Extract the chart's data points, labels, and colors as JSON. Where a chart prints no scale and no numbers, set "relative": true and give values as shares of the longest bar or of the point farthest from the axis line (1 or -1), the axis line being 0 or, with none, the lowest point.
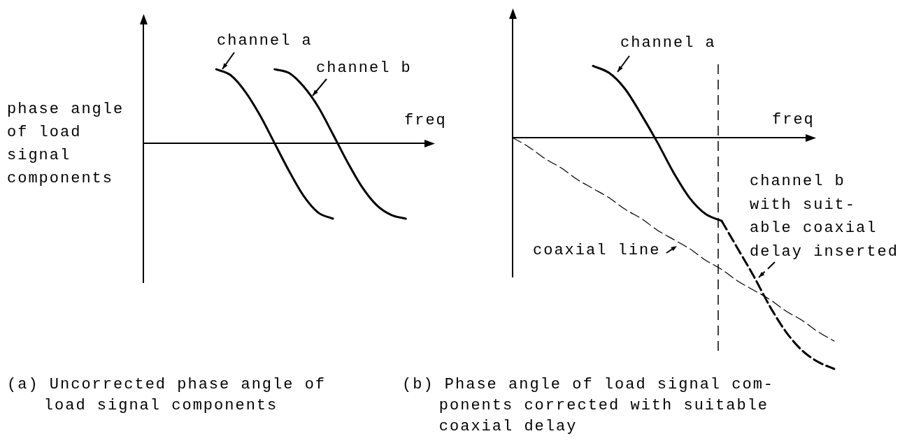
{
  "chart_data": [
    {
      "type": "line",
      "title": "(a) Uncorrected phase angle of\nload signal components",
      "xlabel": "freq",
      "ylabel": "phase angle\nof load\nsignal\ncomponents",
      "relative": true,
      "tick_labels": false,
      "marker": "none",
      "categories": [
        null,
        null,
        null,
        null,
        null,
        null,
        null,
        null,
        null,
        null,
        null,
        null,
        null,
        null,
        null,
        null,
        null,
        null,
        null,
        null,
        null
      ],
      "series": [
        {
          "name": "channel a",
          "color": "#000000",
          "line_style": "solid",
          "values": [
            null,
            null,
            null,
            null,
            null,
            0.98,
            0.9,
            0.68,
            0.37,
            0,
            -0.37,
            -0.7,
            -0.92,
            -1,
            null,
            null,
            null,
            null,
            null,
            null,
            null
          ]
        },
        {
          "name": "channel b",
          "color": "#000000",
          "line_style": "solid",
          "values": [
            null,
            null,
            null,
            null,
            null,
            null,
            null,
            null,
            null,
            0.98,
            0.93,
            0.75,
            0.48,
            0.12,
            -0.25,
            -0.58,
            -0.82,
            -0.95,
            -1,
            null,
            null
          ]
        }
      ]
    },
    {
      "type": "line",
      "title": "(b) Phase angle of load signal com-\nponents corrected with suitable\ncoaxial delay",
      "xlabel": "freq",
      "relative": true,
      "tick_labels": false,
      "marker": "none",
      "categories": [
        null,
        null,
        null,
        null,
        null,
        null,
        null,
        null,
        null,
        null,
        null,
        null,
        null,
        null,
        null,
        null,
        null,
        null,
        null,
        null,
        null
      ],
      "series": [
        {
          "name": "channel a",
          "color": "#000000",
          "line_style": "solid",
          "values": [
            null,
            null,
            null,
            null,
            null,
            0.31,
            0.28,
            0.21,
            0.1,
            -0.02,
            -0.15,
            -0.26,
            -0.33,
            -0.36,
            null,
            null,
            null,
            null,
            null,
            null,
            null
          ]
        },
        {
          "name": "channel b\nwith suit-\nable coaxial\ndelay inserted",
          "color": "#000000",
          "line_style": "dashed",
          "values": [
            null,
            null,
            null,
            null,
            null,
            null,
            null,
            null,
            null,
            null,
            null,
            null,
            null,
            -0.36,
            -0.48,
            -0.6,
            -0.73,
            -0.84,
            -0.92,
            -0.97,
            -1
          ]
        },
        {
          "name": "coaxial line",
          "color": "#000000",
          "line_style": "dashed",
          "values": [
            0,
            -0.04,
            -0.09,
            -0.13,
            -0.18,
            -0.22,
            -0.26,
            -0.31,
            -0.35,
            -0.4,
            -0.44,
            -0.48,
            -0.53,
            -0.57,
            -0.62,
            -0.66,
            -0.7,
            -0.75,
            -0.79,
            -0.84,
            -0.88
          ]
        }
      ]
    }
  ]
}
